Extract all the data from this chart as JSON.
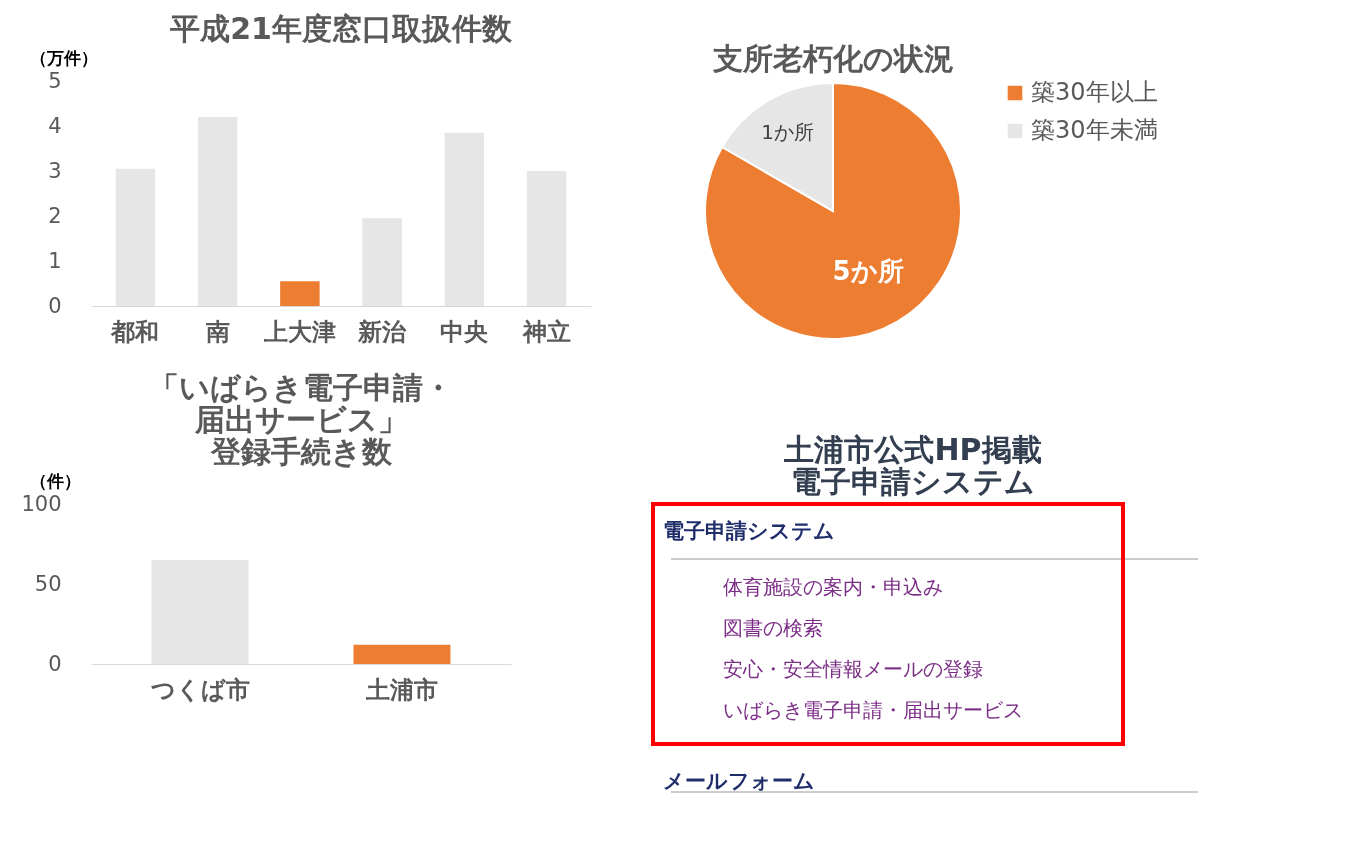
{
  "chart_data": [
    {
      "type": "bar",
      "title": "平成21年度窓口取扱件数",
      "ylabel": "（万件）",
      "categories": [
        "都和",
        "南",
        "上大津",
        "新治",
        "中央",
        "神立"
      ],
      "values": [
        3.05,
        4.2,
        0.55,
        1.95,
        3.85,
        3.0
      ],
      "colors": [
        "#e6e6e6",
        "#e6e6e6",
        "#ed7d31",
        "#e6e6e6",
        "#e6e6e6",
        "#e6e6e6"
      ],
      "ylim": [
        0,
        5
      ],
      "yticks": [
        0,
        1,
        2,
        3,
        4,
        5
      ]
    },
    {
      "type": "pie",
      "title": "支所老朽化の状況",
      "categories": [
        "築30年以上",
        "築30年未満"
      ],
      "values": [
        5,
        1
      ],
      "colors": [
        "#ed7d31",
        "#e6e6e6"
      ],
      "value_labels": [
        "5か所",
        "1か所"
      ],
      "legend": "right"
    },
    {
      "type": "bar",
      "title": [
        "「いばらき電子申請・",
        "届出サービス」",
        "登録手続き数"
      ],
      "ylabel": "（件）",
      "categories": [
        "つくば市",
        "土浦市"
      ],
      "values": [
        65,
        12
      ],
      "colors": [
        "#e6e6e6",
        "#ed7d31"
      ],
      "ylim": [
        0,
        100
      ],
      "yticks": [
        0,
        50,
        100
      ]
    },
    {
      "type": "other",
      "title": [
        "土浦市公式HP掲載",
        "電子申請システム"
      ],
      "annotations": [
        "電子申請システム",
        "体育施設の案内・申込み",
        "図書の検索",
        "安心・安全情報メールの登録",
        "いばらき電子申請・届出サービス",
        "メールフォーム"
      ]
    }
  ]
}
